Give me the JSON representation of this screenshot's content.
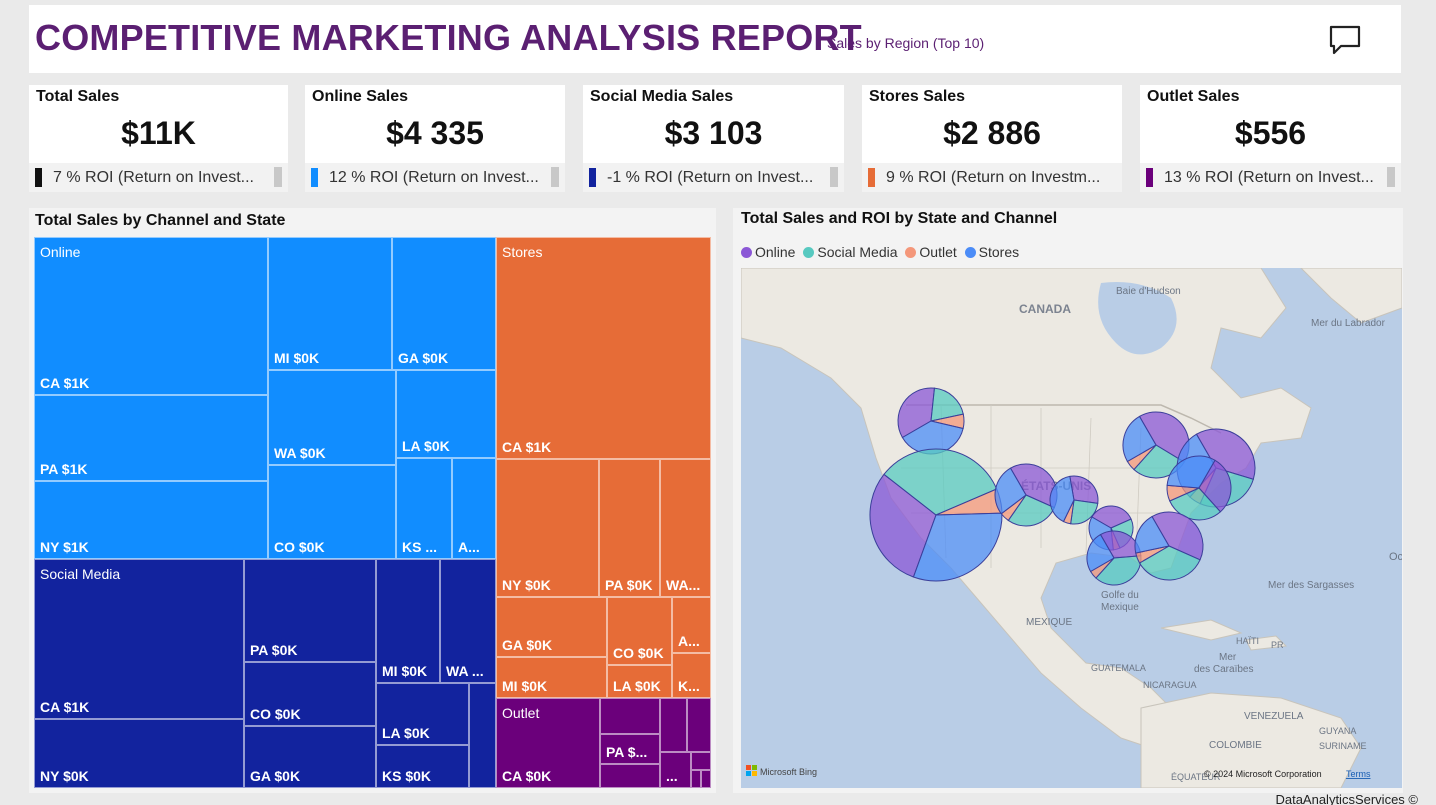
{
  "header": {
    "title": "COMPETITIVE MARKETING ANALYSIS REPORT",
    "subtitle": "Sales by Region (Top 10)"
  },
  "cards": [
    {
      "title": "Total Sales",
      "value": "$11K",
      "roi": "7 % ROI (Return on Invest...",
      "color": "#111111"
    },
    {
      "title": "Online Sales",
      "value": "$4 335",
      "roi": "12 % ROI (Return on Invest...",
      "color": "#118dff"
    },
    {
      "title": "Social Media Sales",
      "value": "$3 103",
      "roi": "-1 % ROI (Return on Invest...",
      "color": "#12239e"
    },
    {
      "title": "Stores Sales",
      "value": "$2 886",
      "roi": "9 % ROI (Return on Investm...",
      "color": "#e66c37"
    },
    {
      "title": "Outlet Sales",
      "value": "$556",
      "roi": "13 % ROI (Return on Invest...",
      "color": "#6b007b"
    }
  ],
  "treemap": {
    "title": "Total Sales by Channel and State",
    "groups": [
      {
        "name": "Online",
        "color": "#118dff"
      },
      {
        "name": "Social Media",
        "color": "#12239e"
      },
      {
        "name": "Stores",
        "color": "#e66c37"
      },
      {
        "name": "Outlet",
        "color": "#6b007b"
      }
    ],
    "labels": {
      "on_ca": "CA $1K",
      "on_pa": "PA $1K",
      "on_ny": "NY $1K",
      "on_mi": "MI $0K",
      "on_ga": "GA $0K",
      "on_wa": "WA $0K",
      "on_la": "LA $0K",
      "on_co": "CO $0K",
      "on_ks": "KS ...",
      "on_a": "A...",
      "sm_ca": "CA $1K",
      "sm_ny": "NY $0K",
      "sm_pa": "PA $0K",
      "sm_co": "CO $0K",
      "sm_ga": "GA $0K",
      "sm_mi": "MI $0K",
      "sm_wa": "WA ...",
      "sm_la": "LA $0K",
      "sm_ks": "KS $0K",
      "st_ca": "CA $1K",
      "st_ny": "NY $0K",
      "st_pa": "PA $0K",
      "st_wa": "WA...",
      "st_ga": "GA $0K",
      "st_co": "CO $0K",
      "st_a": "A...",
      "st_mi": "MI $0K",
      "st_la": "LA $0K",
      "st_k": "K...",
      "ou_ca": "CA $0K",
      "ou_pa": "PA $...",
      "ou_dots": "..."
    }
  },
  "map": {
    "title": "Total Sales and ROI by State and Channel",
    "legend": [
      {
        "name": "Online",
        "color": "#8b57d6"
      },
      {
        "name": "Social Media",
        "color": "#57c9c0"
      },
      {
        "name": "Outlet",
        "color": "#f4977a"
      },
      {
        "name": "Stores",
        "color": "#4b8cf7"
      }
    ],
    "places": {
      "baie": "Baie d'Hudson",
      "canada": "CANADA",
      "labrador": "Mer du Labrador",
      "etats": "ÉTATS-UNIS",
      "golfe1": "Golfe du",
      "golfe2": "Mexique",
      "mexique": "MEXIQUE",
      "sargasses": "Mer des Sargasses",
      "guatemala": "GUATEMALA",
      "nicaragua": "NICARAGUA",
      "haiti": "HAÏTI",
      "pr": "PR",
      "caraibes1": "Mer",
      "caraibes2": "des Caraïbes",
      "venezuela": "VENEZUELA",
      "colombie": "COLOMBIE",
      "guyana": "GUYANA",
      "suriname": "SURINAME",
      "equateur": "ÉQUATEUR",
      "oc": "Oc"
    },
    "bing": "Microsoft Bing",
    "copyright": "© 2024 Microsoft Corporation",
    "terms": "Terms"
  },
  "footer": {
    "credit": "DataAnalyticsServices ©"
  }
}
